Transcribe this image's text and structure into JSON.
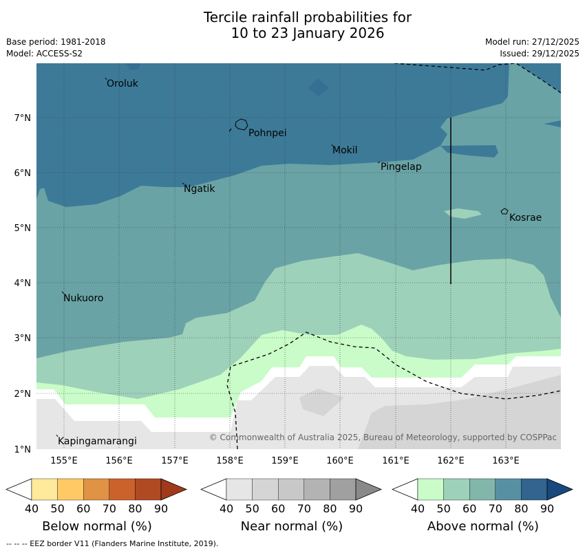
{
  "title": {
    "line1": "Tercile rainfall probabilities for",
    "line2": "10 to 23 January 2026"
  },
  "meta": {
    "base_period": "Base period: 1981-2018",
    "model": "Model: ACCESS-S2",
    "model_run": "Model run: 27/12/2025",
    "issued": "Issued: 29/12/2025"
  },
  "map": {
    "lon_ticks": [
      "155°E",
      "156°E",
      "157°E",
      "158°E",
      "159°E",
      "160°E",
      "161°E",
      "162°E",
      "163°E"
    ],
    "lat_ticks": [
      "7°N",
      "6°N",
      "5°N",
      "4°N",
      "3°N",
      "2°N",
      "1°N"
    ],
    "places": {
      "oroluk": "Oroluk",
      "pohnpei": "Pohnpei",
      "mokil": "Mokil",
      "pingelap": "Pingelap",
      "ngatik": "Ngatik",
      "kosrae": "Kosrae",
      "nukuoro": "Nukuoro",
      "kapingamarangi": "Kapingamarangi"
    },
    "copyright": "© Commonwealth of Australia 2025, Bureau of Meteorology, supported by COSPPac"
  },
  "colorbars": [
    {
      "label": "Below normal (%)",
      "ticks": [
        "40",
        "50",
        "60",
        "70",
        "80",
        "90"
      ],
      "colors": [
        "#ffffff",
        "#ffe99b",
        "#ffc966",
        "#e09245",
        "#cb622c",
        "#b04a22",
        "#a03a1b"
      ]
    },
    {
      "label": "Near normal (%)",
      "ticks": [
        "40",
        "50",
        "60",
        "70",
        "80",
        "90"
      ],
      "colors": [
        "#ffffff",
        "#e6e6e6",
        "#d5d5d5",
        "#c8c8c8",
        "#b3b3b3",
        "#a0a0a0",
        "#898989"
      ]
    },
    {
      "label": "Above normal (%)",
      "ticks": [
        "40",
        "50",
        "60",
        "70",
        "80",
        "90"
      ],
      "colors": [
        "#ffffff",
        "#c9fcc8",
        "#9ed1b9",
        "#83b6ab",
        "#5890a3",
        "#33638f",
        "#17497c"
      ]
    }
  ],
  "footer": "--  --  -- EEZ border V11 (Flanders Marine Institute, 2019)."
}
